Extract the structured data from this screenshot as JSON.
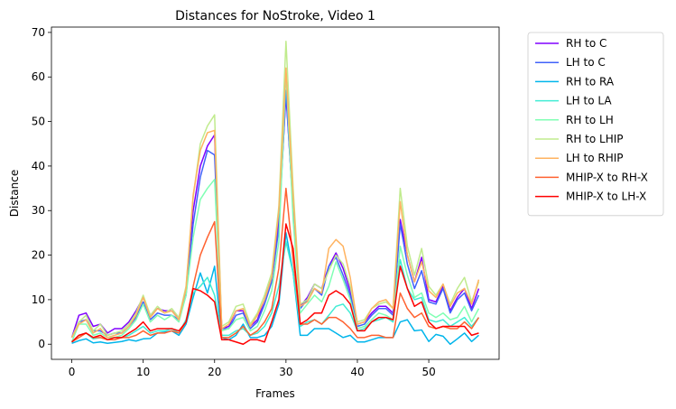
{
  "chart_data": {
    "type": "line",
    "title": "Distances for NoStroke, Video 1",
    "xlabel": "Frames",
    "ylabel": "Distance",
    "xlim": [
      -2.85,
      59.85
    ],
    "ylim": [
      -3.4,
      71.2
    ],
    "xticks": [
      0,
      10,
      20,
      30,
      40,
      50
    ],
    "yticks": [
      0,
      10,
      20,
      30,
      40,
      50,
      60,
      70
    ],
    "grid": false,
    "legend_position": "outside-right",
    "x": [
      0,
      1,
      2,
      3,
      4,
      5,
      6,
      7,
      8,
      9,
      10,
      11,
      12,
      13,
      14,
      15,
      16,
      17,
      18,
      19,
      20,
      21,
      22,
      23,
      24,
      25,
      26,
      27,
      28,
      29,
      30,
      31,
      32,
      33,
      34,
      35,
      36,
      37,
      38,
      39,
      40,
      41,
      42,
      43,
      44,
      45,
      46,
      47,
      48,
      49,
      50,
      51,
      52,
      53,
      54,
      55,
      56,
      57
    ],
    "series": [
      {
        "name": "RH to C",
        "color": "#8000ff",
        "values": [
          1.5,
          6.5,
          7.0,
          4.0,
          4.5,
          2.5,
          3.5,
          3.5,
          5.0,
          7.5,
          10.5,
          6.5,
          8.0,
          7.5,
          7.5,
          6.0,
          12.0,
          30.0,
          40.0,
          44.5,
          47.0,
          3.5,
          4.0,
          7.5,
          7.5,
          4.0,
          5.5,
          10.0,
          15.0,
          28.0,
          56.0,
          31.0,
          8.5,
          10.5,
          13.5,
          12.5,
          17.5,
          20.5,
          17.0,
          12.0,
          4.5,
          5.0,
          7.0,
          8.5,
          8.5,
          7.0,
          28.0,
          20.0,
          14.0,
          19.5,
          10.0,
          9.5,
          13.0,
          7.5,
          10.5,
          12.5,
          8.0,
          12.5
        ]
      },
      {
        "name": "LH to C",
        "color": "#4062fa",
        "values": [
          1.5,
          5.0,
          5.5,
          3.0,
          3.0,
          2.0,
          2.5,
          2.5,
          4.0,
          6.0,
          9.5,
          5.5,
          7.0,
          6.5,
          6.5,
          5.5,
          11.0,
          27.0,
          37.5,
          43.5,
          42.5,
          3.5,
          3.5,
          6.5,
          7.0,
          3.5,
          5.0,
          9.0,
          14.0,
          26.0,
          57.0,
          30.0,
          8.0,
          10.0,
          12.5,
          11.0,
          17.5,
          19.5,
          15.5,
          11.0,
          4.0,
          4.5,
          6.5,
          8.0,
          8.0,
          6.5,
          27.0,
          18.0,
          12.5,
          16.5,
          9.5,
          9.0,
          12.5,
          7.0,
          10.0,
          11.5,
          7.5,
          11.0
        ]
      },
      {
        "name": "RH to RA",
        "color": "#00b5eb",
        "values": [
          0.2,
          0.8,
          1.2,
          0.3,
          0.5,
          0.2,
          0.4,
          0.6,
          1.0,
          0.7,
          1.2,
          1.3,
          2.5,
          2.7,
          3.0,
          2.0,
          4.5,
          10.5,
          16.0,
          11.5,
          17.5,
          1.5,
          1.0,
          2.0,
          4.5,
          1.5,
          1.5,
          2.0,
          4.0,
          9.0,
          25.0,
          16.0,
          2.0,
          2.0,
          3.5,
          3.5,
          3.5,
          2.5,
          1.5,
          2.0,
          0.5,
          0.5,
          1.0,
          1.5,
          1.5,
          1.5,
          5.0,
          5.5,
          3.0,
          3.2,
          0.6,
          2.2,
          1.8,
          0.0,
          1.2,
          2.5,
          0.6,
          2.0
        ]
      },
      {
        "name": "LH to LA",
        "color": "#40ecd4",
        "values": [
          0.5,
          2.0,
          2.5,
          1.2,
          1.5,
          1.0,
          1.0,
          1.5,
          2.0,
          3.0,
          4.0,
          2.5,
          3.0,
          3.0,
          3.5,
          2.5,
          5.5,
          11.5,
          13.0,
          15.0,
          11.0,
          2.0,
          2.0,
          3.0,
          3.5,
          2.0,
          2.5,
          4.0,
          7.0,
          13.0,
          23.0,
          16.0,
          4.0,
          5.0,
          5.5,
          4.5,
          6.5,
          8.5,
          9.0,
          7.0,
          3.0,
          3.5,
          5.0,
          5.5,
          6.0,
          5.0,
          19.0,
          12.5,
          10.0,
          10.5,
          5.5,
          5.0,
          5.5,
          4.0,
          5.0,
          6.0,
          4.0,
          6.0
        ]
      },
      {
        "name": "RH to LH",
        "color": "#80ffb4",
        "values": [
          0.5,
          4.5,
          4.5,
          2.0,
          2.5,
          1.5,
          1.5,
          2.0,
          3.5,
          5.5,
          9.0,
          5.0,
          6.5,
          5.5,
          6.5,
          5.0,
          11.0,
          24.0,
          32.5,
          35.0,
          37.0,
          3.0,
          3.5,
          5.5,
          6.0,
          3.0,
          4.0,
          7.5,
          12.0,
          23.0,
          61.0,
          28.0,
          7.0,
          9.0,
          11.0,
          9.5,
          13.0,
          18.5,
          14.5,
          10.0,
          3.5,
          4.0,
          5.5,
          7.0,
          6.5,
          5.5,
          22.0,
          15.5,
          10.5,
          11.5,
          7.0,
          6.0,
          7.0,
          5.5,
          6.0,
          8.5,
          5.0,
          8.0
        ]
      },
      {
        "name": "RH to LHIP",
        "color": "#c0eb8d",
        "values": [
          1.5,
          5.0,
          6.5,
          3.0,
          4.5,
          2.0,
          2.5,
          3.0,
          4.5,
          7.0,
          11.0,
          6.5,
          8.5,
          7.0,
          8.0,
          6.0,
          13.0,
          33.0,
          45.0,
          49.0,
          51.5,
          4.0,
          5.0,
          8.5,
          9.0,
          4.5,
          7.0,
          11.0,
          16.0,
          31.0,
          68.0,
          35.0,
          9.0,
          10.0,
          13.5,
          12.5,
          16.5,
          20.0,
          18.0,
          13.0,
          5.0,
          5.5,
          8.0,
          9.0,
          9.5,
          8.0,
          35.0,
          22.0,
          15.5,
          21.5,
          13.0,
          11.0,
          13.5,
          9.0,
          12.5,
          15.0,
          9.5,
          14.0
        ]
      },
      {
        "name": "LH to RHIP",
        "color": "#ffb360",
        "values": [
          1.5,
          4.5,
          5.5,
          2.5,
          3.5,
          1.5,
          2.0,
          2.5,
          4.0,
          6.5,
          10.5,
          6.0,
          8.0,
          7.0,
          7.5,
          5.5,
          12.5,
          33.5,
          43.5,
          47.5,
          48.0,
          3.5,
          4.5,
          7.5,
          8.0,
          4.0,
          6.5,
          10.0,
          15.0,
          30.0,
          62.0,
          33.0,
          8.5,
          9.5,
          12.5,
          11.5,
          21.5,
          23.5,
          22.0,
          15.0,
          4.5,
          5.0,
          8.0,
          9.5,
          10.0,
          8.0,
          32.0,
          20.0,
          14.0,
          18.5,
          12.0,
          10.5,
          13.5,
          8.5,
          11.5,
          12.5,
          9.0,
          14.5
        ]
      },
      {
        "name": "MHIP-X to RH-X",
        "color": "#ff6230",
        "values": [
          0.5,
          1.5,
          2.5,
          1.5,
          1.5,
          1.0,
          1.0,
          1.5,
          1.5,
          2.0,
          3.0,
          2.0,
          2.5,
          2.5,
          3.0,
          2.5,
          5.0,
          13.0,
          20.0,
          24.0,
          27.5,
          1.5,
          1.5,
          2.5,
          4.0,
          2.0,
          3.0,
          5.0,
          8.0,
          17.0,
          35.0,
          19.0,
          4.5,
          4.5,
          5.5,
          4.5,
          6.0,
          6.0,
          5.0,
          3.5,
          1.5,
          1.5,
          2.0,
          2.0,
          1.5,
          1.5,
          11.5,
          8.0,
          6.0,
          7.0,
          4.0,
          3.5,
          4.0,
          3.5,
          3.5,
          5.0,
          3.5,
          6.0
        ]
      },
      {
        "name": "MHIP-X to LH-X",
        "color": "#ff0000",
        "values": [
          0.5,
          2.0,
          2.5,
          1.5,
          2.0,
          1.0,
          1.5,
          1.5,
          2.5,
          3.5,
          5.0,
          3.0,
          3.5,
          3.5,
          3.5,
          3.0,
          5.0,
          12.5,
          12.0,
          11.0,
          9.5,
          1.0,
          1.0,
          0.5,
          0.0,
          1.0,
          1.0,
          0.5,
          5.0,
          10.0,
          27.0,
          21.5,
          4.5,
          5.5,
          7.0,
          7.0,
          11.0,
          12.0,
          11.0,
          9.0,
          3.0,
          3.0,
          5.0,
          6.0,
          6.0,
          5.5,
          17.5,
          12.5,
          8.5,
          9.5,
          5.0,
          3.5,
          4.0,
          4.0,
          4.0,
          4.0,
          2.0,
          2.5
        ]
      }
    ]
  }
}
